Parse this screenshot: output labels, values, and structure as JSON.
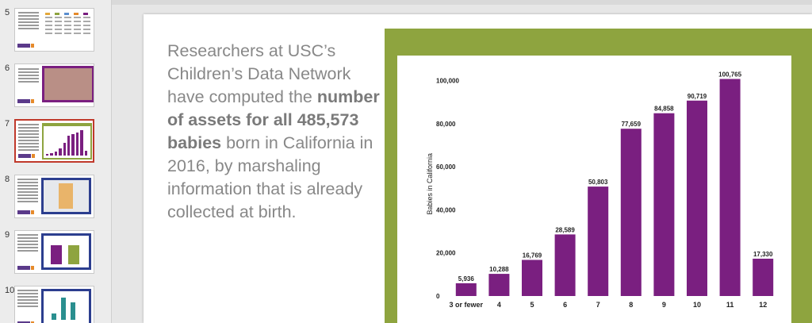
{
  "sidebar": {
    "slides": [
      {
        "number": "5",
        "selected": false,
        "style": "text"
      },
      {
        "number": "6",
        "selected": false,
        "style": "photo"
      },
      {
        "number": "7",
        "selected": true,
        "style": "chart"
      },
      {
        "number": "8",
        "selected": false,
        "style": "map"
      },
      {
        "number": "9",
        "selected": false,
        "style": "bars2"
      },
      {
        "number": "10",
        "selected": false,
        "style": "bars3"
      }
    ]
  },
  "slide": {
    "text_part1": "Researchers at USC’s Children’s Data Network have computed the ",
    "text_bold": "number of assets for all 485,573 babies",
    "text_part2": " born in California in 2016, by marshaling information that is already collected at birth."
  },
  "colors": {
    "frame": "#8ea43f",
    "bar": "#7a1f80",
    "thumb_selected_border": "#c0392b"
  },
  "chart_data": {
    "type": "bar",
    "categories": [
      "3 or fewer",
      "4",
      "5",
      "6",
      "7",
      "8",
      "9",
      "10",
      "11",
      "12"
    ],
    "values": [
      5936,
      10288,
      16769,
      28589,
      50803,
      77659,
      84858,
      90719,
      100765,
      17330
    ],
    "value_labels": [
      "5,936",
      "10,288",
      "16,769",
      "28,589",
      "50,803",
      "77,659",
      "84,858",
      "90,719",
      "100,765",
      "17,330"
    ],
    "yticks": [
      0,
      20000,
      40000,
      60000,
      80000,
      100000
    ],
    "ytick_labels": [
      "0",
      "20,000",
      "40,000",
      "60,000",
      "80,000",
      "100,000"
    ],
    "ylabel": "Babies in California",
    "xlabel": "",
    "title": "",
    "ylim": [
      0,
      105000
    ]
  }
}
